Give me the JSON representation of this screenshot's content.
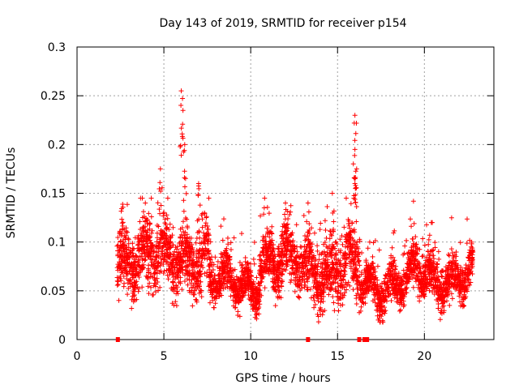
{
  "chart_data": {
    "type": "scatter",
    "title": "Day 143 of 2019, SRMTID for receiver p154",
    "xlabel": "GPS time / hours",
    "ylabel": "SRMTID / TECUs",
    "xlim": [
      0,
      24
    ],
    "ylim": [
      0,
      0.3
    ],
    "xticks": [
      0,
      5,
      10,
      15,
      20
    ],
    "yticks": [
      0,
      0.05,
      0.1,
      0.15,
      0.2,
      0.25,
      0.3
    ],
    "xtick_labels": [
      "0",
      "5",
      "10",
      "15",
      "20"
    ],
    "ytick_labels": [
      "0",
      "0.05",
      "0.1",
      "0.15",
      "0.2",
      "0.25",
      "0.3"
    ],
    "grid": true,
    "marker": "+",
    "color": "#ff0000",
    "series": [
      {
        "name": "SRMTID",
        "segments": [
          {
            "start": 2.3,
            "end": 7.6,
            "base": 0.085,
            "spread": 0.03
          },
          {
            "start": 7.6,
            "end": 10.5,
            "base": 0.058,
            "spread": 0.018
          },
          {
            "start": 10.5,
            "end": 13.2,
            "base": 0.078,
            "spread": 0.025
          },
          {
            "start": 13.2,
            "end": 16.3,
            "base": 0.072,
            "spread": 0.03
          },
          {
            "start": 16.3,
            "end": 19.3,
            "base": 0.058,
            "spread": 0.018
          },
          {
            "start": 19.3,
            "end": 22.8,
            "base": 0.065,
            "spread": 0.02
          }
        ],
        "peaks": [
          {
            "x": 4.8,
            "y": 0.175
          },
          {
            "x": 6.0,
            "y": 0.255
          },
          {
            "x": 6.1,
            "y": 0.235
          },
          {
            "x": 6.2,
            "y": 0.2
          },
          {
            "x": 7.0,
            "y": 0.16
          },
          {
            "x": 10.8,
            "y": 0.145
          },
          {
            "x": 12.0,
            "y": 0.14
          },
          {
            "x": 13.3,
            "y": 0.14
          },
          {
            "x": 14.7,
            "y": 0.15
          },
          {
            "x": 16.0,
            "y": 0.23
          },
          {
            "x": 16.0,
            "y": 0.195
          },
          {
            "x": 16.1,
            "y": 0.175
          },
          {
            "x": 16.0,
            "y": 0.16
          },
          {
            "x": 20.4,
            "y": 0.12
          }
        ]
      }
    ],
    "gaps_markers_x": [
      2.35,
      13.3,
      16.25,
      16.55,
      16.7
    ]
  }
}
